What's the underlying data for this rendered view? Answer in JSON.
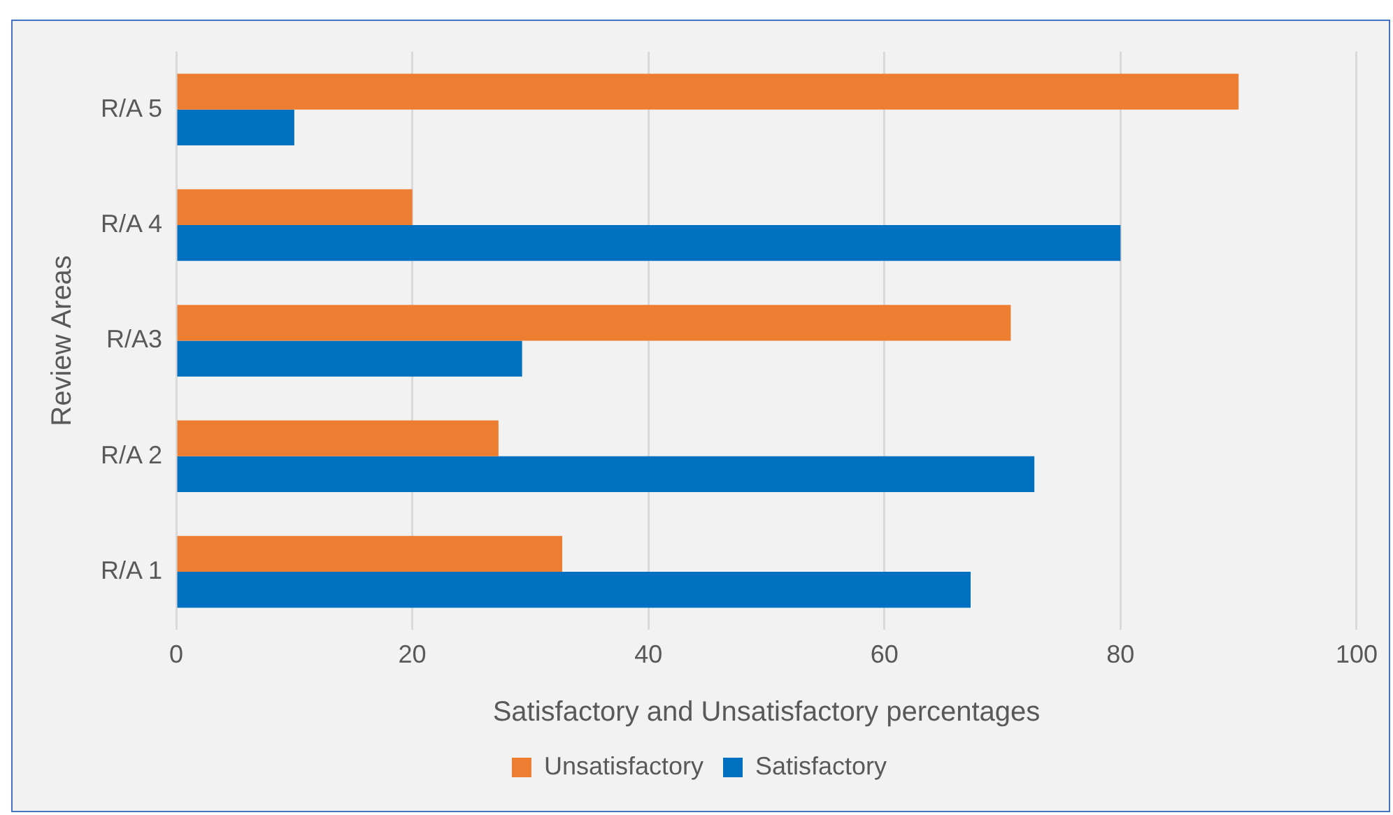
{
  "chart_data": {
    "type": "bar",
    "orientation": "horizontal",
    "xlabel": "Satisfactory and Unsatisfactory percentages",
    "ylabel": "Review Areas",
    "categories": [
      "R/A 5",
      "R/A 4",
      "R/A3",
      "R/A 2",
      "R/A 1"
    ],
    "series": [
      {
        "name": "Unsatisfactory",
        "color": "#ed7d31",
        "values": [
          90,
          20,
          70.7,
          27.3,
          32.7
        ]
      },
      {
        "name": "Satisfactory",
        "color": "#0070c0",
        "values": [
          10,
          80,
          29.3,
          72.7,
          67.3
        ]
      }
    ],
    "xlim": [
      0,
      100
    ],
    "xticks": [
      0,
      20,
      40,
      60,
      80,
      100
    ],
    "grid": "x",
    "legend": "bottom"
  }
}
